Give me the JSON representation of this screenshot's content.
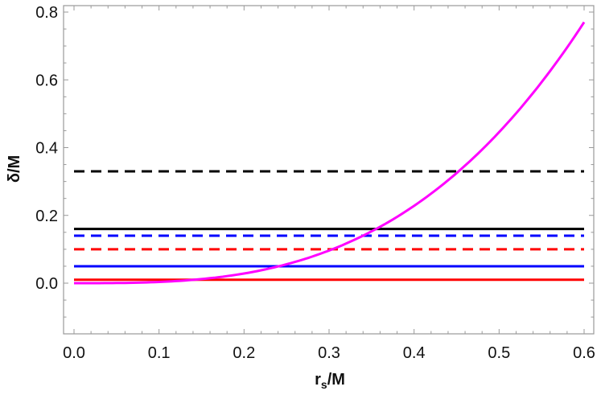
{
  "chart_data": {
    "type": "line",
    "title": "",
    "xlabel": "r",
    "xlabel_sub": "s",
    "xlabel_suffix": "/M",
    "ylabel": "δ/M",
    "xlim": [
      -0.02,
      0.615
    ],
    "ylim": [
      -0.15,
      0.82
    ],
    "grid": false,
    "x_ticks": [
      "0.0",
      "0.1",
      "0.2",
      "0.3",
      "0.4",
      "0.5",
      "0.6"
    ],
    "y_ticks": [
      "0.0",
      "0.2",
      "0.4",
      "0.6",
      "0.8"
    ],
    "series": [
      {
        "color": "#000000",
        "style": "dashed",
        "x": [
          0,
          0.6
        ],
        "y": [
          0.33,
          0.33
        ]
      },
      {
        "color": "#000000",
        "style": "solid",
        "x": [
          0,
          0.6
        ],
        "y": [
          0.16,
          0.16
        ]
      },
      {
        "color": "#0000ff",
        "style": "dashed",
        "x": [
          0,
          0.6
        ],
        "y": [
          0.14,
          0.14
        ]
      },
      {
        "color": "#ff0000",
        "style": "dashed",
        "x": [
          0,
          0.6
        ],
        "y": [
          0.1,
          0.1
        ]
      },
      {
        "color": "#0000ff",
        "style": "solid",
        "x": [
          0,
          0.6
        ],
        "y": [
          0.05,
          0.05
        ]
      },
      {
        "color": "#ff0000",
        "style": "solid",
        "x": [
          0,
          0.6
        ],
        "y": [
          0.01,
          0.01
        ]
      },
      {
        "color": "#ff00ff",
        "style": "solid",
        "x": [
          0,
          0.05,
          0.1,
          0.15,
          0.2,
          0.25,
          0.3,
          0.35,
          0.4,
          0.45,
          0.5,
          0.55,
          0.6
        ],
        "y": [
          0,
          0.0004,
          0.0036,
          0.012,
          0.0285,
          0.0557,
          0.0963,
          0.153,
          0.228,
          0.325,
          0.446,
          0.593,
          0.77
        ]
      }
    ]
  }
}
